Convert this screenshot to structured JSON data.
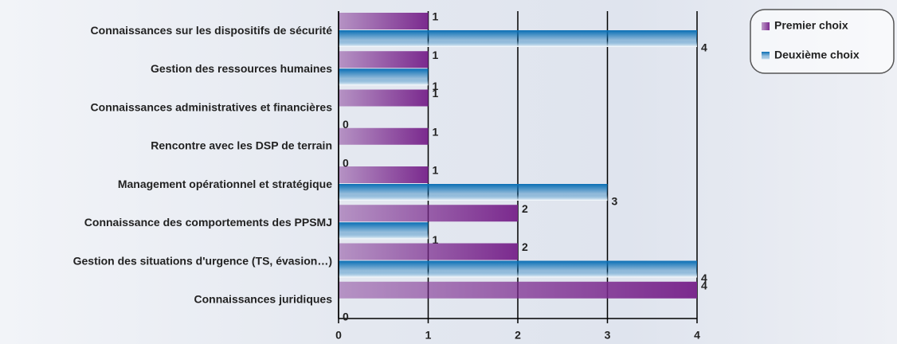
{
  "chart_data": {
    "type": "bar",
    "orientation": "horizontal",
    "categories": [
      "Connaissances sur les dispositifs de sécurité",
      "Gestion des ressources humaines",
      "Connaissances administratives et financières",
      "Rencontre avec les DSP de terrain",
      "Management opérationnel et stratégique",
      "Connaissance des comportements des PPSMJ",
      "Gestion des situations d'urgence (TS, évasion…)",
      "Connaissances juridiques"
    ],
    "series": [
      {
        "name": "Premier choix",
        "color": "#7b2a8e",
        "values": [
          1,
          1,
          1,
          1,
          1,
          2,
          2,
          4
        ]
      },
      {
        "name": "Deuxième choix",
        "color": "#0a6fb5",
        "values": [
          4,
          1,
          0,
          0,
          3,
          1,
          4,
          0
        ]
      }
    ],
    "xlim": [
      0,
      4
    ],
    "xticks": [
      0,
      1,
      2,
      3,
      4
    ],
    "grid": true,
    "legend": "top-right"
  }
}
